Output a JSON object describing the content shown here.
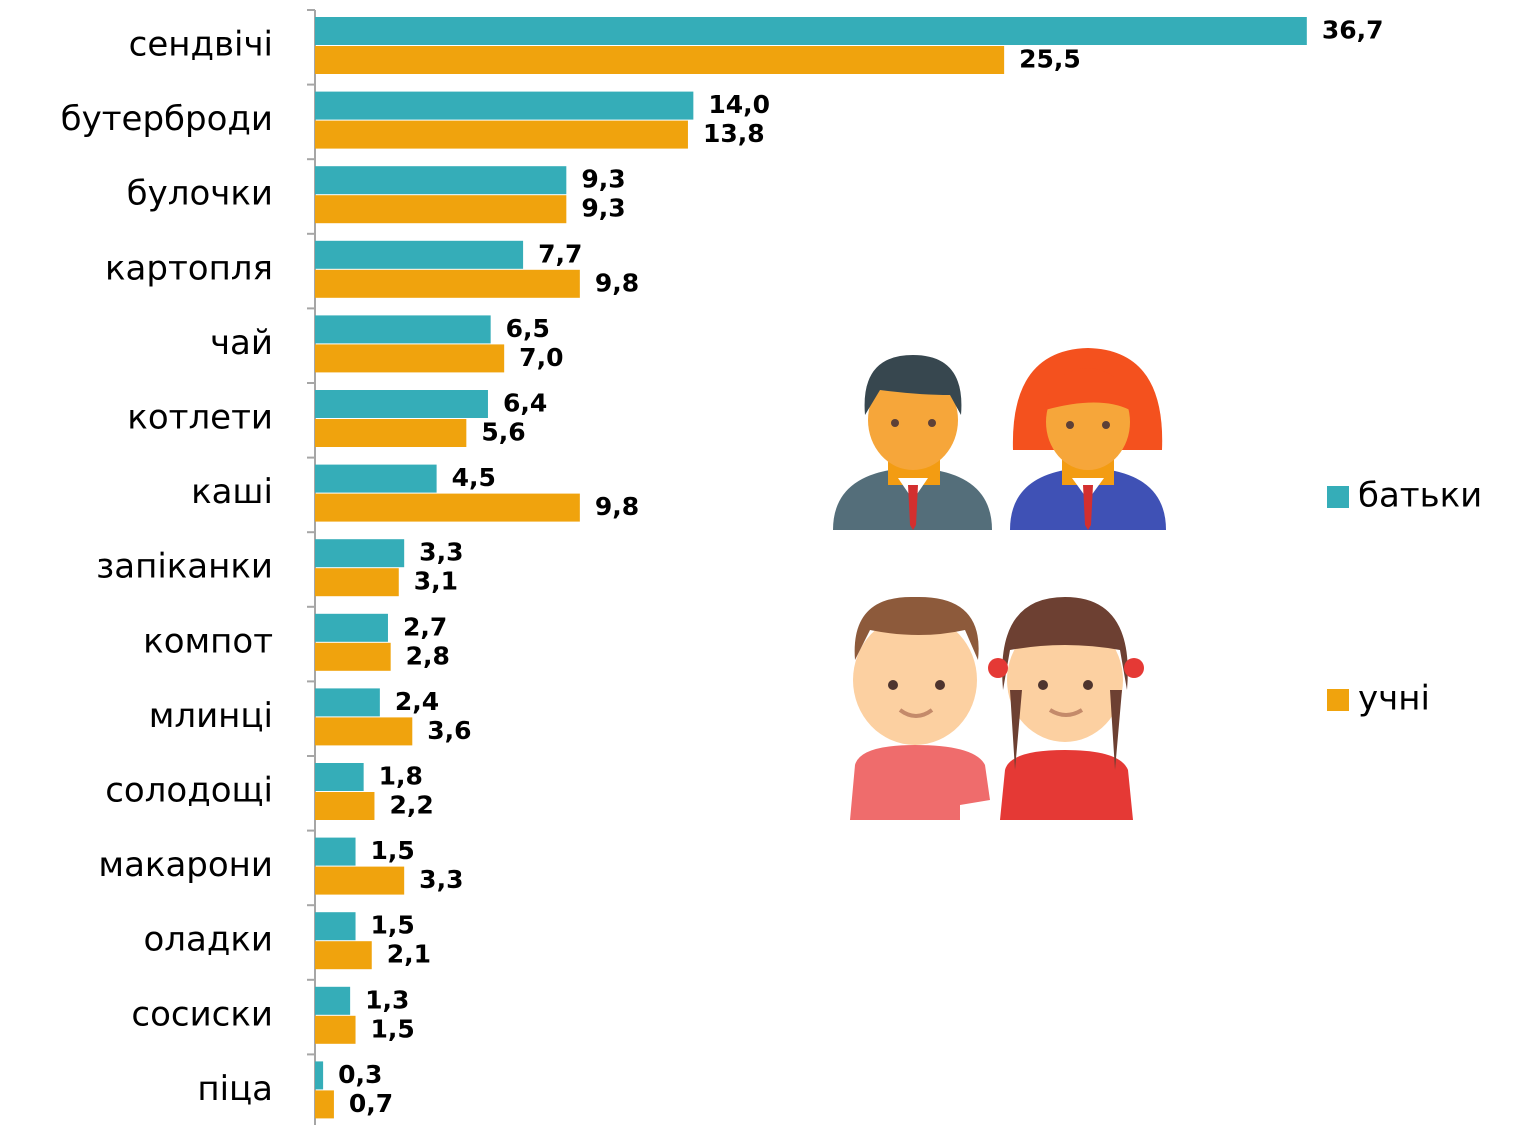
{
  "chart_data": {
    "type": "hbar",
    "categories": [
      "сендвічі",
      "бутерброди",
      "булочки",
      "картопля",
      "чай",
      "котлети",
      "каші",
      "запіканки",
      "компот",
      "млинці",
      "солодощі",
      "макарони",
      "оладки",
      "сосиски",
      "піца"
    ],
    "series": [
      {
        "name": "батьки",
        "color": "#35adb8",
        "values": [
          36.7,
          14.0,
          9.3,
          7.7,
          6.5,
          6.4,
          4.5,
          3.3,
          2.7,
          2.4,
          1.8,
          1.5,
          1.5,
          1.3,
          0.3
        ],
        "value_labels": [
          "36,7",
          "14,0",
          "9,3",
          "7,7",
          "6,5",
          "6,4",
          "4,5",
          "3,3",
          "2,7",
          "2,4",
          "1,8",
          "1,5",
          "1,5",
          "1,3",
          "0,3"
        ]
      },
      {
        "name": "учні",
        "color": "#f0a30d",
        "values": [
          25.5,
          13.8,
          9.3,
          9.8,
          7.0,
          5.6,
          9.8,
          3.1,
          2.8,
          3.6,
          2.2,
          3.3,
          2.1,
          1.5,
          0.7
        ],
        "value_labels": [
          "25,5",
          "13,8",
          "9,3",
          "9,8",
          "7,0",
          "5,6",
          "9,8",
          "3,1",
          "2,8",
          "3,6",
          "2,2",
          "3,3",
          "2,1",
          "1,5",
          "0,7"
        ]
      }
    ],
    "xlim": [
      0,
      40
    ]
  }
}
